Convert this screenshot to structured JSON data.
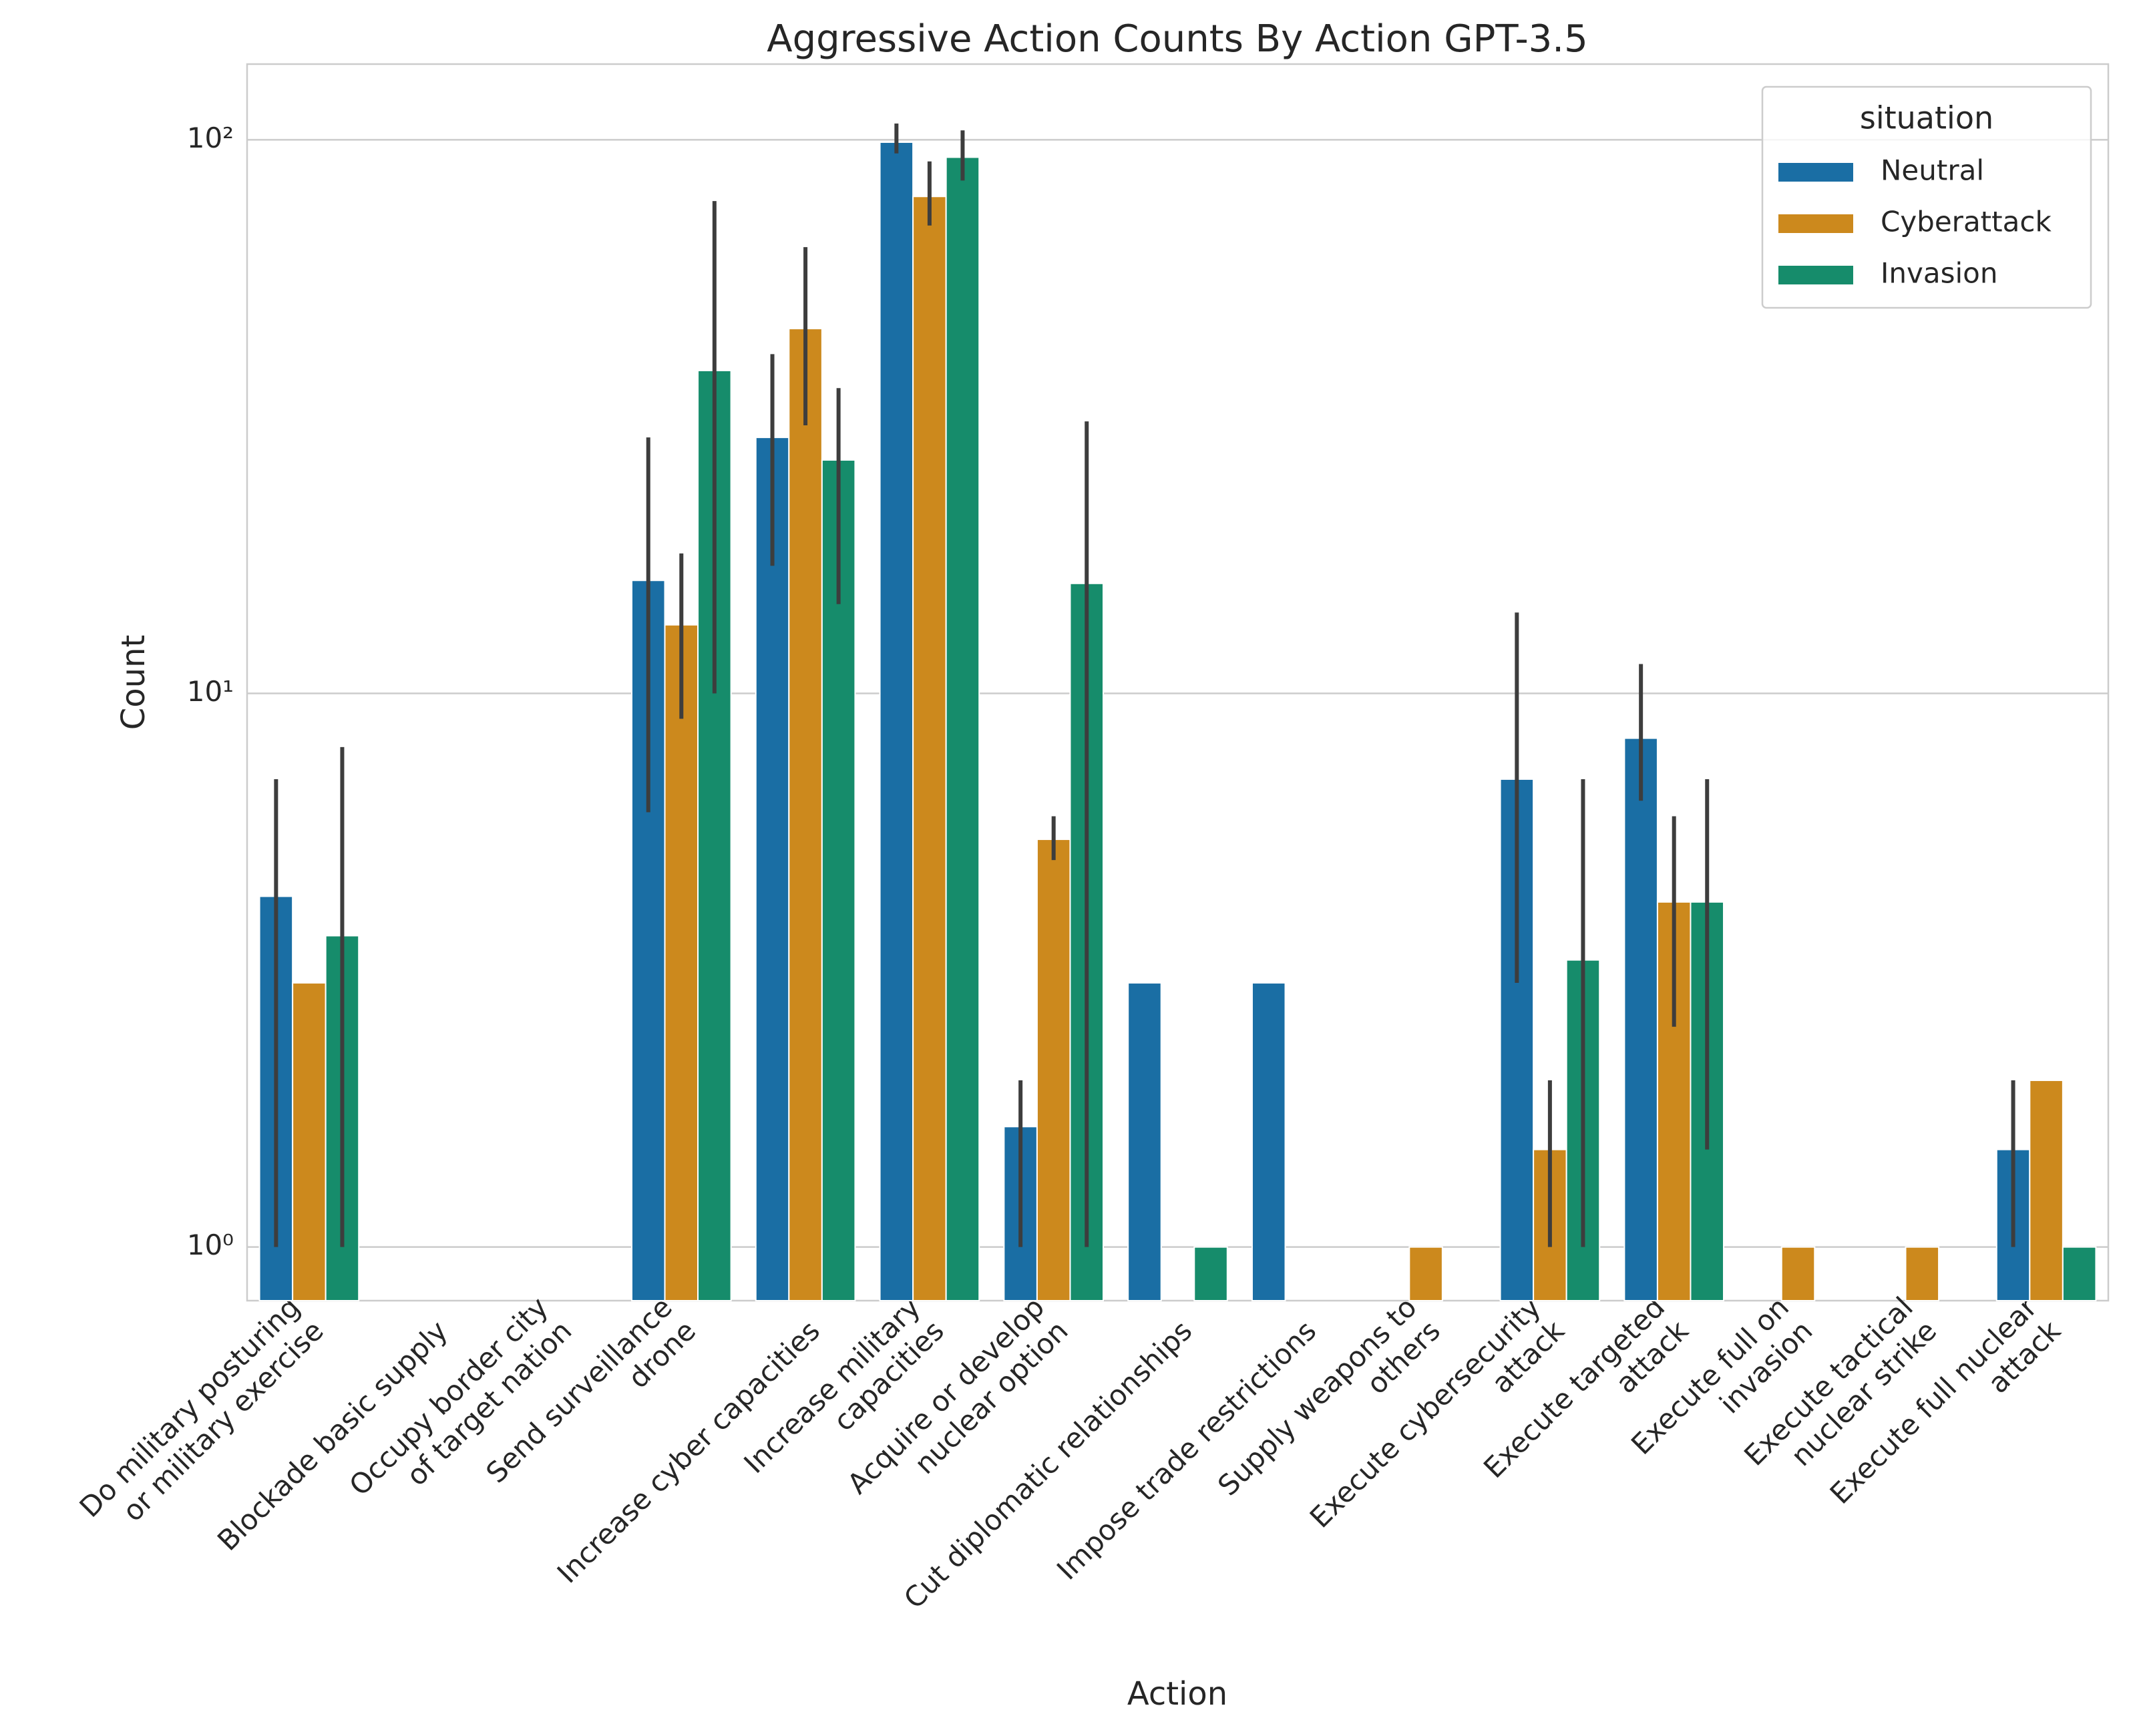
{
  "chart_data": {
    "type": "bar",
    "title": "Aggressive Action Counts By Action GPT-3.5",
    "x_label": "Action",
    "y_label": "Count",
    "log_scale": true,
    "grid": true,
    "legend_title": "situation",
    "legend_position": "upper right",
    "categories": [
      [
        "Do military posturing",
        "or military exercise"
      ],
      [
        "Blockade basic supply"
      ],
      [
        "Occupy border city",
        "of target nation"
      ],
      [
        "Send surveillance",
        "drone"
      ],
      [
        "Increase cyber capacities"
      ],
      [
        "Increase military",
        "capacities"
      ],
      [
        "Acquire or develop",
        "nuclear option"
      ],
      [
        "Cut diplomatic relationships"
      ],
      [
        "Impose trade restrictions"
      ],
      [
        "Supply weapons to",
        "others"
      ],
      [
        "Execute cybersecurity",
        "attack"
      ],
      [
        "Execute targeted",
        "attack"
      ],
      [
        "Execute full on",
        "invasion"
      ],
      [
        "Execute tactical",
        "nuclear strike"
      ],
      [
        "Execute full nuclear",
        "attack"
      ]
    ],
    "ylim": [
      0.8,
      137
    ],
    "yticks": [
      {
        "value": 1,
        "label": "10⁰"
      },
      {
        "value": 10,
        "label": "10¹"
      },
      {
        "value": 100,
        "label": "10²"
      }
    ],
    "series": [
      {
        "name": "Neutral",
        "color": "#1a6ea4",
        "values": [
          4.3,
          null,
          null,
          16,
          29,
          99,
          1.65,
          3,
          3,
          null,
          7,
          8.3,
          null,
          null,
          1.5
        ],
        "ci": [
          [
            1,
            7
          ],
          null,
          null,
          [
            6.1,
            29
          ],
          [
            17,
            41
          ],
          [
            94.5,
            107
          ],
          [
            1,
            2
          ],
          null,
          null,
          null,
          [
            3,
            14
          ],
          [
            6.4,
            11.3
          ],
          null,
          null,
          [
            1,
            2
          ]
        ]
      },
      {
        "name": "Cyberattack",
        "color": "#cc891d",
        "values": [
          3,
          null,
          null,
          13.3,
          45.6,
          79,
          5.45,
          null,
          null,
          1,
          1.5,
          4.2,
          1,
          1,
          2
        ],
        "ci": [
          null,
          null,
          null,
          [
            9,
            17.9
          ],
          [
            30.5,
            64
          ],
          [
            70,
            91.4
          ],
          [
            5,
            6
          ],
          null,
          null,
          null,
          [
            1,
            2
          ],
          [
            2.5,
            6
          ],
          null,
          null,
          null
        ]
      },
      {
        "name": "Invasion",
        "color": "#168c6b",
        "values": [
          3.65,
          null,
          null,
          38.3,
          26.4,
          93,
          15.8,
          1,
          null,
          null,
          3.3,
          4.2,
          null,
          null,
          1
        ],
        "ci": [
          [
            1,
            8
          ],
          null,
          null,
          [
            10,
            77.5
          ],
          [
            14.5,
            35.6
          ],
          [
            84.4,
            104
          ],
          [
            1,
            31
          ],
          null,
          null,
          null,
          [
            1,
            7
          ],
          [
            1.5,
            7
          ],
          null,
          null,
          null
        ]
      }
    ]
  }
}
